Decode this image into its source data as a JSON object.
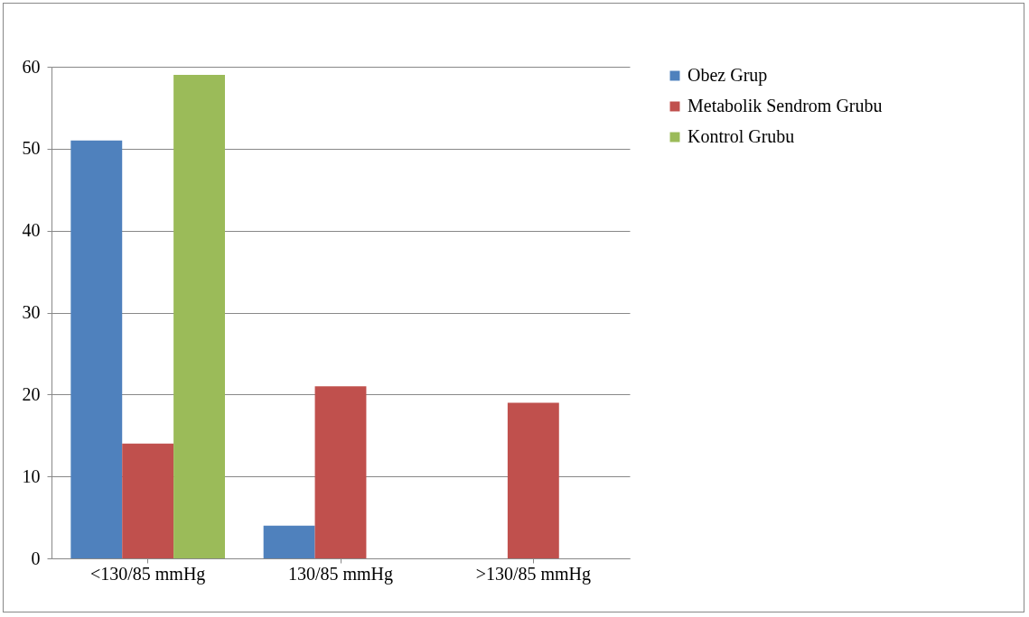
{
  "chart_data": {
    "type": "bar",
    "categories": [
      "<130/85 mmHg",
      "130/85 mmHg",
      ">130/85 mmHg"
    ],
    "series": [
      {
        "name": "Obez Grup",
        "color": "#4f81bd",
        "values": [
          51,
          4,
          null
        ]
      },
      {
        "name": "Metabolik Sendrom Grubu",
        "color": "#c0504d",
        "values": [
          14,
          21,
          19
        ]
      },
      {
        "name": "Kontrol Grubu",
        "color": "#9bbb59",
        "values": [
          59,
          null,
          null
        ]
      }
    ],
    "ylim": [
      0,
      60
    ],
    "yticks": [
      0,
      10,
      20,
      30,
      40,
      50,
      60
    ],
    "grid": "y",
    "legend": "right"
  }
}
